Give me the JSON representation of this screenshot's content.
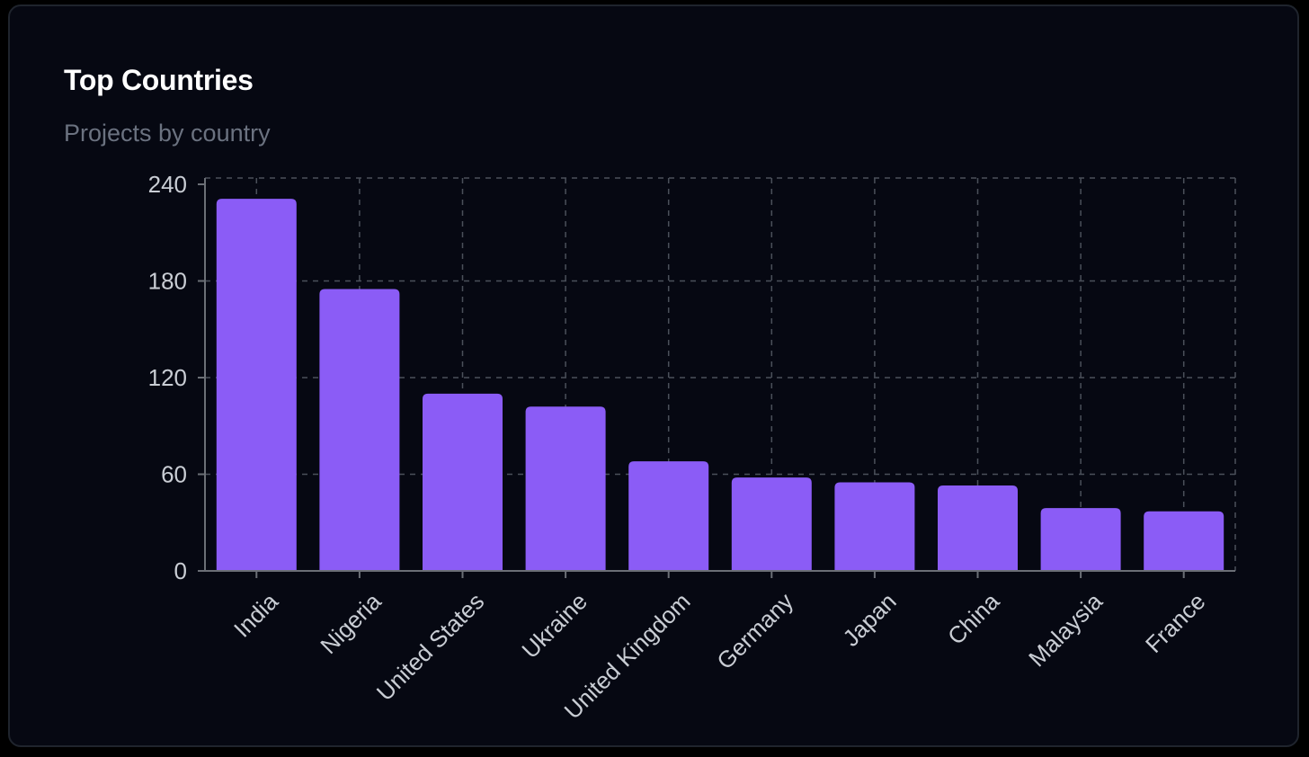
{
  "card": {
    "title": "Top Countries",
    "subtitle": "Projects by country"
  },
  "colors": {
    "background": "#060812",
    "bar": "#8b5cf6",
    "grid": "#4b505a",
    "axis": "#6b6f76",
    "tick_text": "#c9cdd4",
    "title": "#ffffff",
    "subtitle": "#6b7280"
  },
  "chart_data": {
    "type": "bar",
    "title": "Top Countries",
    "subtitle": "Projects by country",
    "xlabel": "",
    "ylabel": "",
    "categories": [
      "India",
      "Nigeria",
      "United States",
      "Ukraine",
      "United Kingdom",
      "Germany",
      "Japan",
      "China",
      "Malaysia",
      "France"
    ],
    "values": [
      231,
      175,
      110,
      102,
      68,
      58,
      55,
      53,
      39,
      37
    ],
    "ylim": [
      0,
      240
    ],
    "yticks": [
      0,
      60,
      120,
      180,
      240
    ],
    "grid": true,
    "legend": "none"
  }
}
